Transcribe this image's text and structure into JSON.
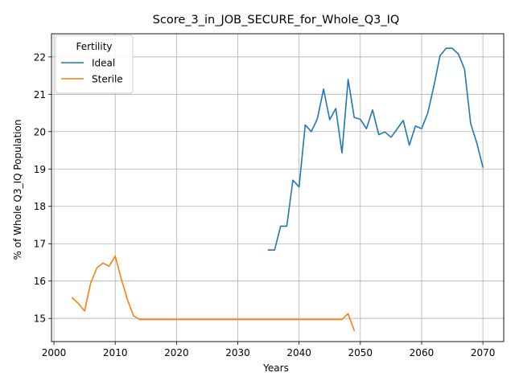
{
  "chart_data": {
    "type": "line",
    "title": "Score_3_in_JOB_SECURE_for_Whole_Q3_IQ",
    "xlabel": "Years",
    "ylabel": "% of Whole Q3_IQ Population",
    "xlim": [
      1999.6,
      2073.4
    ],
    "ylim": [
      14.38,
      22.62
    ],
    "xticks": [
      2000,
      2010,
      2020,
      2030,
      2040,
      2050,
      2060,
      2070
    ],
    "yticks": [
      15,
      16,
      17,
      18,
      19,
      20,
      21,
      22
    ],
    "grid": true,
    "legend": {
      "title": "Fertility",
      "position": "top-left"
    },
    "series": [
      {
        "name": "Ideal",
        "color": "#1f77b4",
        "x": [
          2035,
          2036,
          2037,
          2038,
          2039,
          2040,
          2041,
          2042,
          2043,
          2044,
          2045,
          2046,
          2047,
          2048,
          2049,
          2050,
          2051,
          2052,
          2053,
          2054,
          2055,
          2056,
          2057,
          2058,
          2059,
          2060,
          2061,
          2062,
          2063,
          2064,
          2065,
          2066,
          2067,
          2068,
          2069,
          2070
        ],
        "y": [
          16.83,
          16.83,
          17.47,
          17.47,
          18.7,
          18.52,
          20.18,
          20.0,
          20.35,
          21.14,
          20.32,
          20.62,
          19.43,
          21.4,
          20.38,
          20.33,
          20.08,
          20.58,
          19.92,
          19.99,
          19.85,
          20.07,
          20.3,
          19.64,
          20.15,
          20.08,
          20.5,
          21.22,
          22.03,
          22.23,
          22.23,
          22.08,
          21.67,
          20.22,
          19.7,
          19.05
        ]
      },
      {
        "name": "Sterile",
        "color": "#ff7f0e",
        "x": [
          2003,
          2004,
          2005,
          2006,
          2007,
          2008,
          2009,
          2010,
          2011,
          2012,
          2013,
          2014,
          2015,
          2016,
          2017,
          2018,
          2019,
          2020,
          2021,
          2022,
          2023,
          2024,
          2025,
          2026,
          2027,
          2028,
          2029,
          2030,
          2031,
          2032,
          2033,
          2034,
          2035,
          2036,
          2037,
          2038,
          2039,
          2040,
          2041,
          2042,
          2043,
          2044,
          2045,
          2046,
          2047,
          2048,
          2049
        ],
        "y": [
          15.55,
          15.4,
          15.2,
          15.95,
          16.35,
          16.48,
          16.4,
          16.67,
          16.05,
          15.5,
          15.07,
          14.97,
          14.97,
          14.97,
          14.97,
          14.97,
          14.97,
          14.97,
          14.97,
          14.97,
          14.97,
          14.97,
          14.97,
          14.97,
          14.97,
          14.97,
          14.97,
          14.97,
          14.97,
          14.97,
          14.97,
          14.97,
          14.97,
          14.97,
          14.97,
          14.97,
          14.97,
          14.97,
          14.97,
          14.97,
          14.97,
          14.97,
          14.97,
          14.97,
          14.97,
          15.13,
          14.68
        ]
      }
    ]
  }
}
